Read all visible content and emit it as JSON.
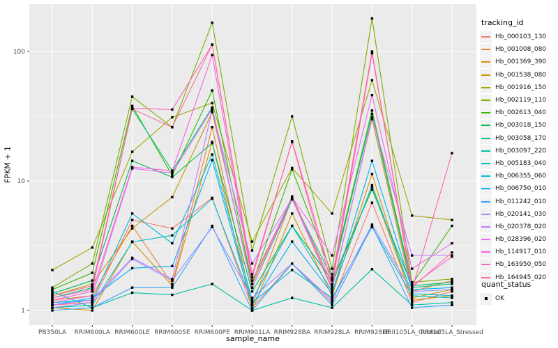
{
  "legend": {
    "tracking_title": "tracking_id",
    "quant_title": "quant_status",
    "quant_items": [
      {
        "label": "OK",
        "marker": "black-square"
      }
    ]
  },
  "chart_data": {
    "type": "line",
    "title": "",
    "xlabel": "sample_name",
    "ylabel": "FPKM + 1",
    "y_scale": "log10",
    "y_ticks": [
      1,
      10,
      100
    ],
    "y_tick_labels": [
      "1",
      "10",
      "100"
    ],
    "y_minor_ticks": [
      3.1623,
      31.6228
    ],
    "ylim": [
      0.93,
      230
    ],
    "legend_position": "right",
    "panel_bg": "#EBEBEB",
    "grid_color": "#FFFFFF",
    "axis_text_color": "#4D4D4D",
    "point": {
      "shape": "square",
      "color": "#000000",
      "size": 3.4
    },
    "categories": [
      "PB350LA",
      "RRIM600LA",
      "RRIM600LE",
      "RRIM600SE",
      "RRIM600PE",
      "RRIM901LA",
      "RRIM928BA",
      "RRIM928LA",
      "RRIM928LE",
      "RRII105LA_Control",
      "RRII105LA_Stressed"
    ],
    "series": [
      {
        "name": "Hb_000103_130",
        "color": "#F8766D",
        "values": [
          1.1,
          1.15,
          5.0,
          4.3,
          7.4,
          1.05,
          2.3,
          1.15,
          6.8,
          1.15,
          1.4
        ]
      },
      {
        "name": "Hb_001008_080",
        "color": "#EA8331",
        "values": [
          1.2,
          1.3,
          4.5,
          1.6,
          26,
          1.1,
          7.4,
          1.5,
          30,
          1.4,
          1.7
        ]
      },
      {
        "name": "Hb_001369_390",
        "color": "#D89000",
        "values": [
          1.05,
          1.0,
          3.4,
          1.55,
          20,
          1.0,
          5.6,
          1.3,
          11.3,
          1.2,
          1.3
        ]
      },
      {
        "name": "Hb_001538_080",
        "color": "#C09B00",
        "values": [
          1.3,
          1.6,
          4.3,
          7.5,
          34,
          1.6,
          7.6,
          1.6,
          9.0,
          1.25,
          1.45
        ]
      },
      {
        "name": "Hb_001916_150",
        "color": "#A3A500",
        "values": [
          2.05,
          3.06,
          16.8,
          31,
          40,
          3.4,
          12.6,
          5.6,
          60,
          5.4,
          5.0
        ]
      },
      {
        "name": "Hb_002119_110",
        "color": "#7CAE00",
        "values": [
          1.5,
          2.3,
          44.8,
          26,
          167,
          2.9,
          31.6,
          2.1,
          180,
          1.65,
          1.75
        ]
      },
      {
        "name": "Hb_002613_040",
        "color": "#39B600",
        "values": [
          1.45,
          1.95,
          38,
          11,
          50,
          1.6,
          12.3,
          1.9,
          35,
          1.6,
          4.5
        ]
      },
      {
        "name": "Hb_003018_150",
        "color": "#00BB4E",
        "values": [
          1.35,
          1.7,
          14.3,
          10.7,
          19.6,
          1.4,
          4.5,
          1.7,
          8.6,
          1.55,
          1.65
        ]
      },
      {
        "name": "Hb_003058_170",
        "color": "#00BF7D",
        "values": [
          1.25,
          1.5,
          36,
          12,
          37,
          1.5,
          7.2,
          1.8,
          33,
          1.5,
          1.6
        ]
      },
      {
        "name": "Hb_003097_220",
        "color": "#00C1A3",
        "values": [
          1.4,
          1.05,
          1.37,
          1.32,
          1.6,
          1.0,
          1.25,
          1.05,
          2.08,
          1.1,
          1.15
        ]
      },
      {
        "name": "Hb_005183_040",
        "color": "#00BFC4",
        "values": [
          1.05,
          1.1,
          3.38,
          3.8,
          7.3,
          1.15,
          2.05,
          1.25,
          4.4,
          1.3,
          1.25
        ]
      },
      {
        "name": "Hb_006355_060",
        "color": "#00BBDA",
        "values": [
          1.15,
          1.2,
          5.6,
          3.3,
          16,
          1.2,
          4.5,
          1.4,
          9.3,
          1.35,
          1.3
        ]
      },
      {
        "name": "Hb_006750_010",
        "color": "#00B0F6",
        "values": [
          1.1,
          1.25,
          2.12,
          2.2,
          14.5,
          1.1,
          3.4,
          1.35,
          14.3,
          1.45,
          1.5
        ]
      },
      {
        "name": "Hb_011242_010",
        "color": "#35A2FF",
        "values": [
          1.0,
          1.05,
          1.5,
          1.5,
          4.5,
          1.0,
          2.3,
          1.1,
          4.5,
          1.05,
          1.1
        ]
      },
      {
        "name": "Hb_020141_030",
        "color": "#9590FF",
        "values": [
          1.05,
          1.15,
          2.5,
          1.7,
          4.4,
          1.25,
          2.3,
          1.2,
          4.6,
          1.4,
          1.45
        ]
      },
      {
        "name": "Hb_020378_020",
        "color": "#C77CFF",
        "values": [
          1.1,
          1.2,
          2.55,
          1.75,
          35,
          2.3,
          7.3,
          1.45,
          31,
          2.66,
          2.66
        ]
      },
      {
        "name": "Hb_028396_020",
        "color": "#E76BF3",
        "values": [
          1.15,
          1.3,
          12.5,
          11.5,
          36,
          1.5,
          7.5,
          2.66,
          46,
          2.1,
          3.3
        ]
      },
      {
        "name": "Hb_114917_010",
        "color": "#FA62DB",
        "values": [
          1.2,
          1.4,
          12.8,
          12.0,
          94,
          1.7,
          7.4,
          1.6,
          97,
          1.55,
          2.6
        ]
      },
      {
        "name": "Hb_163950_050",
        "color": "#FF62BC",
        "values": [
          1.25,
          1.45,
          36.5,
          35.6,
          113,
          1.8,
          20.3,
          1.75,
          100,
          1.45,
          16.4
        ]
      },
      {
        "name": "Hb_164945_020",
        "color": "#FF6A98",
        "values": [
          1.3,
          1.55,
          36.0,
          26.0,
          113,
          1.9,
          20.0,
          1.55,
          97,
          1.5,
          2.8
        ]
      }
    ]
  }
}
